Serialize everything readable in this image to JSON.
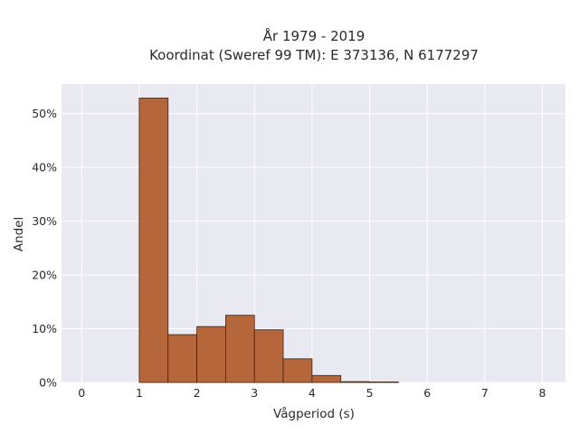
{
  "chart_data": {
    "type": "bar",
    "title": "År 1979 - 2019",
    "subtitle": "Koordinat (Sweref 99 TM): E 373136, N 6177297",
    "xlabel": "Vågperiod (s)",
    "ylabel": "Andel",
    "xlim": [
      -0.35,
      8.4
    ],
    "ylim": [
      0,
      55.5
    ],
    "x_ticks": [
      0,
      1,
      2,
      3,
      4,
      5,
      6,
      7,
      8
    ],
    "y_ticks": [
      0,
      10,
      20,
      30,
      40,
      50
    ],
    "y_tick_format": "percent",
    "grid": true,
    "bins": [
      {
        "x0": 1.0,
        "x1": 1.5,
        "value": 52.9
      },
      {
        "x0": 1.5,
        "x1": 2.0,
        "value": 8.9
      },
      {
        "x0": 2.0,
        "x1": 2.5,
        "value": 10.4
      },
      {
        "x0": 2.5,
        "x1": 3.0,
        "value": 12.5
      },
      {
        "x0": 3.0,
        "x1": 3.5,
        "value": 9.8
      },
      {
        "x0": 3.5,
        "x1": 4.0,
        "value": 4.4
      },
      {
        "x0": 4.0,
        "x1": 4.5,
        "value": 1.3
      },
      {
        "x0": 4.5,
        "x1": 5.0,
        "value": 0.15
      },
      {
        "x0": 5.0,
        "x1": 5.5,
        "value": 0.1
      }
    ],
    "colors": {
      "bar_fill": "#b5663a",
      "bar_stroke": "#3d2416",
      "plot_background": "#e9e9f1",
      "grid": "#ffffff"
    }
  }
}
